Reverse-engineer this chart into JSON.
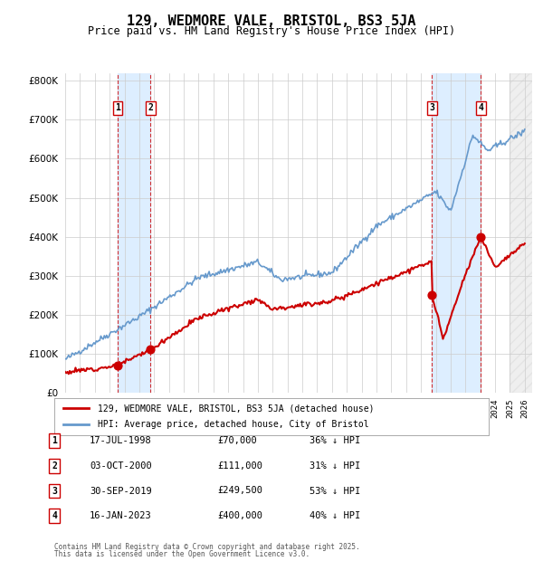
{
  "title": "129, WEDMORE VALE, BRISTOL, BS3 5JA",
  "subtitle": "Price paid vs. HM Land Registry's House Price Index (HPI)",
  "legend_line1": "129, WEDMORE VALE, BRISTOL, BS3 5JA (detached house)",
  "legend_line2": "HPI: Average price, detached house, City of Bristol",
  "footer1": "Contains HM Land Registry data © Crown copyright and database right 2025.",
  "footer2": "This data is licensed under the Open Government Licence v3.0.",
  "transactions": [
    {
      "num": 1,
      "date": "17-JUL-1998",
      "price": 70000,
      "pct": "36%",
      "dir": "↓",
      "year_x": 1998.54
    },
    {
      "num": 2,
      "date": "03-OCT-2000",
      "price": 111000,
      "pct": "31%",
      "dir": "↓",
      "year_x": 2000.75
    },
    {
      "num": 3,
      "date": "30-SEP-2019",
      "price": 249500,
      "pct": "53%",
      "dir": "↓",
      "year_x": 2019.75
    },
    {
      "num": 4,
      "date": "16-JAN-2023",
      "price": 400000,
      "pct": "40%",
      "dir": "↓",
      "year_x": 2023.04
    }
  ],
  "red_color": "#cc0000",
  "blue_color": "#6699cc",
  "shade_color": "#ddeeff",
  "grid_color": "#cccccc",
  "bg_color": "#ffffff",
  "hatch_color": "#cccccc",
  "ylim": [
    0,
    820000
  ],
  "xlim_start": 1995,
  "xlim_end": 2026.5,
  "yticks": [
    0,
    100000,
    200000,
    300000,
    400000,
    500000,
    600000,
    700000,
    800000
  ],
  "ytick_labels": [
    "£0",
    "£100K",
    "£200K",
    "£300K",
    "£400K",
    "£500K",
    "£600K",
    "£700K",
    "£800K"
  ]
}
